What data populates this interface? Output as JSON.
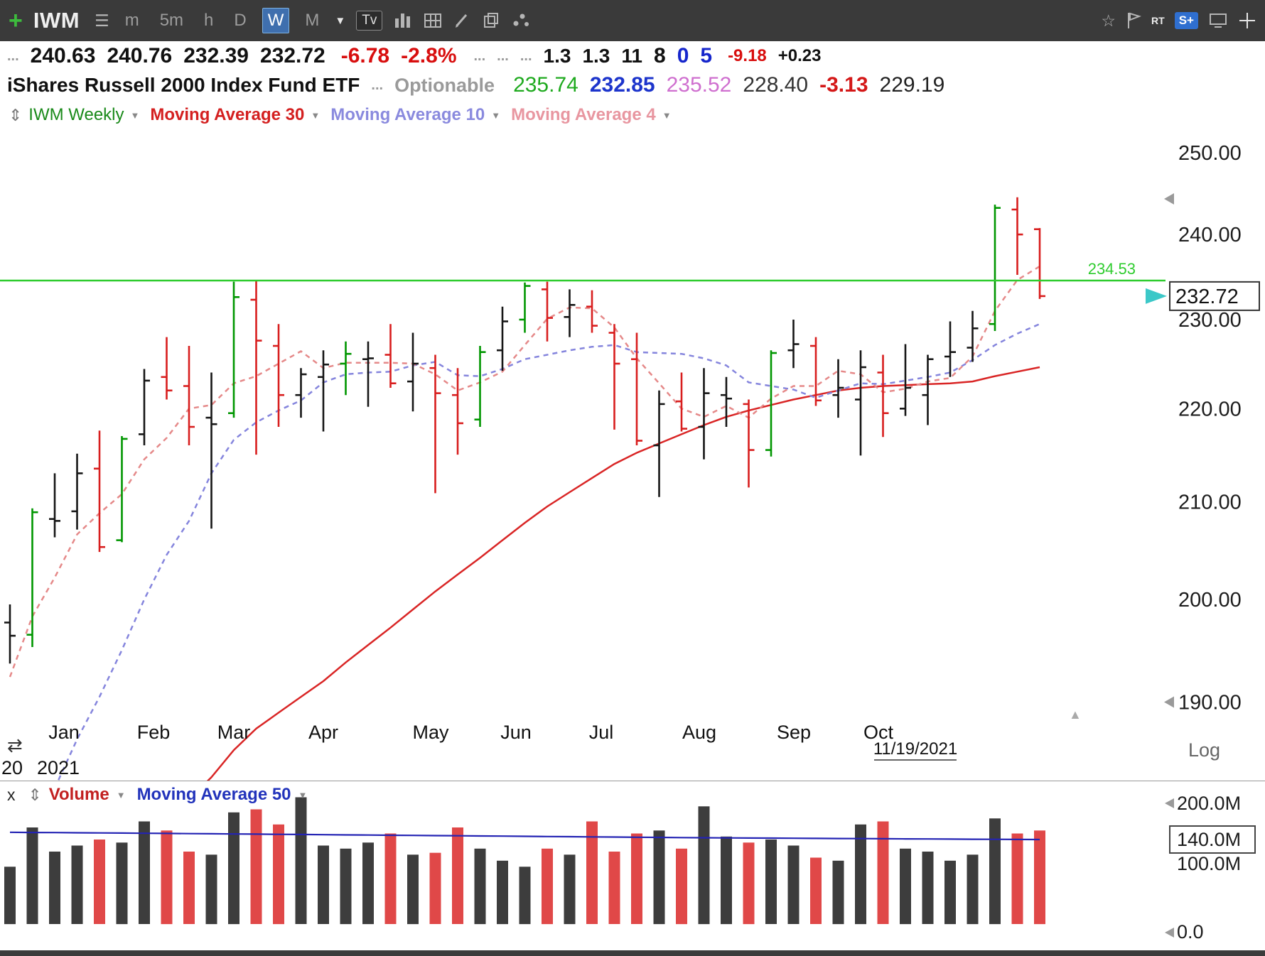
{
  "toolbar": {
    "ticker": "IWM",
    "timeframes": {
      "m": "m",
      "m5": "5m",
      "h": "h",
      "d": "D",
      "w": "W",
      "mo": "M"
    },
    "active_timeframe": "W",
    "tv_badge": "Tv",
    "rt_label": "RT",
    "s_badge": "S+"
  },
  "icons": {
    "plus": "+",
    "menu": "☰",
    "caret_down": "▼",
    "updown": "⇕",
    "reload": "⇄",
    "left_arrow": "◀",
    "up_arrow": "▲",
    "star": "☆"
  },
  "quote1": {
    "prefix_dots": "...",
    "open": "240.63",
    "high": "240.76",
    "low": "232.39",
    "last": "232.72",
    "change": "-6.78",
    "change_pct": "-2.8%",
    "dots1": "...",
    "dots2": "...",
    "dots3": "...",
    "v1": "1.3",
    "v2": "1.3",
    "v3": "11",
    "v4": "8",
    "v5": "0",
    "v6": "5",
    "v7": "-9.18",
    "v8": "+0.23"
  },
  "quote2": {
    "name": "iShares Russell 2000 Index Fund ETF",
    "dots": "...",
    "optionable": "Optionable",
    "val_green": "235.74",
    "val_blue": "232.85",
    "val_magenta": "235.52",
    "val_gray": "228.40",
    "val_red": "-3.13",
    "val_black": "229.19"
  },
  "price_legend": {
    "symbol": "IWM Weekly",
    "ma30": "Moving Average 30",
    "ma10": "Moving Average 10",
    "ma4": "Moving Average 4"
  },
  "volume_legend": {
    "close": "x",
    "volume": "Volume",
    "ma50": "Moving Average 50"
  },
  "colors": {
    "green_line": "#2ecc2e",
    "bar_green": "#009600",
    "bar_red": "#d81e1e",
    "bar_black": "#161616",
    "ma30": "#d92525",
    "ma10": "#8585dd",
    "ma4": "#e58989",
    "vol_red": "#e04848",
    "vol_dark": "#3d3d3d",
    "vol_ma": "#2424b4",
    "cyan_marker": "#3cc8c8",
    "axis_text": "#1c1c1c"
  },
  "chart_data": [
    {
      "type": "ohlc-bar",
      "title": "IWM Weekly",
      "scale": "log",
      "log_label": "Log",
      "y_ticks": [
        {
          "value": 250,
          "label": "250.00"
        },
        {
          "value": 240,
          "label": "240.00"
        },
        {
          "value": 230,
          "label": "230.00"
        },
        {
          "value": 220,
          "label": "220.00"
        },
        {
          "value": 210,
          "label": "210.00"
        },
        {
          "value": 200,
          "label": "200.00"
        },
        {
          "value": 190,
          "label": "190.00",
          "marker": true
        }
      ],
      "axis_arrow_values": [
        244.3
      ],
      "months": [
        {
          "label": "Jan",
          "i": 2.4
        },
        {
          "label": "Feb",
          "i": 6.4
        },
        {
          "label": "Mar",
          "i": 10.0
        },
        {
          "label": "Apr",
          "i": 14.0
        },
        {
          "label": "May",
          "i": 18.8
        },
        {
          "label": "Jun",
          "i": 22.6
        },
        {
          "label": "Jul",
          "i": 26.4
        },
        {
          "label": "Aug",
          "i": 30.8
        },
        {
          "label": "Sep",
          "i": 35.0
        },
        {
          "label": "Oct",
          "i": 38.8
        }
      ],
      "year_label": "2021",
      "prev_year_label": "20",
      "last_date": "11/19/2021",
      "hline": {
        "value": 234.53,
        "label": "234.53"
      },
      "last_price": {
        "value": 232.72,
        "label": "232.72"
      },
      "bars": [
        [
          197.7,
          199.5,
          193.7,
          196.4,
          "k"
        ],
        [
          196.5,
          209.3,
          195.3,
          208.9,
          "g"
        ],
        [
          208.2,
          213,
          206.3,
          208,
          "k"
        ],
        [
          209,
          215.1,
          207.1,
          213,
          "k"
        ],
        [
          213.5,
          217.6,
          204.8,
          205.3,
          "r"
        ],
        [
          206,
          217,
          205.8,
          216.7,
          "g"
        ],
        [
          217.2,
          224.4,
          216,
          223.1,
          "k"
        ],
        [
          223.5,
          228,
          221,
          222,
          "r"
        ],
        [
          222.5,
          227,
          216,
          218,
          "r"
        ],
        [
          219,
          224,
          207.2,
          218.3,
          "k"
        ],
        [
          219.5,
          234.4,
          219,
          232.6,
          "g"
        ],
        [
          232.3,
          234.53,
          215,
          227.6,
          "r"
        ],
        [
          227,
          229.5,
          218,
          221.5,
          "r"
        ],
        [
          221.5,
          224.5,
          219,
          223.8,
          "k"
        ],
        [
          223.5,
          226.5,
          217.5,
          224.9,
          "k"
        ],
        [
          225,
          227.5,
          221.5,
          226.1,
          "g"
        ],
        [
          225.5,
          227.5,
          220.2,
          225.6,
          "k"
        ],
        [
          226,
          229.5,
          222.3,
          222.8,
          "r"
        ],
        [
          223,
          228.5,
          219.7,
          225,
          "k"
        ],
        [
          224.5,
          226,
          210.9,
          221.7,
          "r"
        ],
        [
          221.5,
          224.5,
          215,
          218.4,
          "r"
        ],
        [
          218.8,
          227,
          218,
          226.3,
          "g"
        ],
        [
          226.5,
          231.5,
          224.2,
          229.8,
          "k"
        ],
        [
          230,
          234.3,
          228.5,
          233.9,
          "g"
        ],
        [
          233.5,
          234.4,
          227.5,
          230.2,
          "r"
        ],
        [
          230.3,
          233.5,
          228,
          231.7,
          "k"
        ],
        [
          231.5,
          233.4,
          228.5,
          229.3,
          "r"
        ],
        [
          228.5,
          229.5,
          217.7,
          225,
          "r"
        ],
        [
          225.5,
          228.5,
          216,
          216.5,
          "r"
        ],
        [
          216,
          222,
          210.5,
          220.5,
          "k"
        ],
        [
          220.8,
          224,
          217.5,
          217.8,
          "r"
        ],
        [
          218,
          224.5,
          214.5,
          221.7,
          "k"
        ],
        [
          221.5,
          223.5,
          218,
          221.1,
          "k"
        ],
        [
          220.5,
          221,
          211.5,
          215.5,
          "r"
        ],
        [
          215.5,
          226.5,
          214.8,
          226.2,
          "g"
        ],
        [
          226.5,
          230,
          224.5,
          227.2,
          "k"
        ],
        [
          227,
          228,
          220.3,
          220.9,
          "r"
        ],
        [
          221.5,
          225.5,
          219,
          222.3,
          "k"
        ],
        [
          221,
          226.5,
          214.9,
          224.6,
          "k"
        ],
        [
          224,
          226,
          216.9,
          219.5,
          "r"
        ],
        [
          220,
          227.2,
          219.2,
          222.3,
          "k"
        ],
        [
          221.5,
          226,
          218.2,
          225.5,
          "k"
        ],
        [
          225.8,
          229.8,
          223.5,
          226.3,
          "k"
        ],
        [
          226.8,
          231,
          225.2,
          229,
          "k"
        ],
        [
          229.5,
          243.6,
          228.7,
          243.2,
          "g"
        ],
        [
          243,
          244.5,
          235.2,
          240,
          "r"
        ],
        [
          240.63,
          240.76,
          232.39,
          232.72,
          "r"
        ]
      ],
      "ma4": [
        192.4,
        198.3,
        202.2,
        206.6,
        208.8,
        210.8,
        214.5,
        216.8,
        220,
        220.4,
        222.8,
        223.6,
        225,
        226.4,
        224.5,
        225.1,
        225.1,
        225.1,
        225,
        223.8,
        222,
        222.9,
        224.1,
        227.1,
        230.1,
        231.4,
        231.3,
        229.1,
        225.6,
        222.8,
        220,
        219.1,
        220.3,
        219,
        221.1,
        222.5,
        222.5,
        224.2,
        223.8,
        221.8,
        222.2,
        223,
        223.4,
        225.8,
        231,
        234.6,
        236.2
      ],
      "ma10": [
        173,
        178,
        182,
        186.5,
        190.5,
        195,
        200,
        204.5,
        208,
        213,
        216.6,
        218.5,
        219.8,
        220.9,
        222.9,
        223.8,
        224,
        224.1,
        224.8,
        225.2,
        223.7,
        223.6,
        224.4,
        225.5,
        226,
        226.5,
        226.9,
        227.1,
        226.3,
        226.2,
        226.1,
        225.6,
        224.8,
        222.9,
        222.5,
        222.1,
        221.2,
        222,
        222.8,
        222.7,
        223.1,
        223.5,
        224,
        225.4,
        227.1,
        228.4,
        229.5
      ],
      "ma30": [
        null,
        null,
        null,
        null,
        null,
        null,
        null,
        null,
        181,
        183,
        185.5,
        187.5,
        189,
        190.5,
        192,
        193.8,
        195.5,
        197.2,
        199,
        200.8,
        202.5,
        204.2,
        206,
        207.8,
        209.5,
        211,
        212.5,
        214,
        215.2,
        216.2,
        217.2,
        218.2,
        219.1,
        219.8,
        220.4,
        221,
        221.5,
        222,
        222.3,
        222.5,
        222.6,
        222.7,
        222.8,
        223,
        223.6,
        224.1,
        224.6
      ]
    },
    {
      "type": "bar",
      "title": "Volume",
      "values": [
        95,
        160,
        120,
        130,
        140,
        135,
        170,
        155,
        120,
        115,
        185,
        190,
        165,
        210,
        130,
        125,
        135,
        150,
        115,
        118,
        160,
        125,
        105,
        95,
        125,
        115,
        170,
        120,
        150,
        155,
        125,
        195,
        145,
        135,
        140,
        130,
        110,
        105,
        165,
        170,
        125,
        120,
        105,
        115,
        175,
        150,
        155
      ],
      "unit": "M",
      "ma50": [
        152,
        151.7,
        151.5,
        151.2,
        151,
        150.7,
        150.4,
        150.1,
        149.8,
        149.5,
        149.2,
        148.9,
        148.6,
        148.3,
        148,
        147.7,
        147.4,
        147.1,
        146.8,
        146.5,
        146.2,
        145.9,
        145.6,
        145.3,
        145,
        144.7,
        144.4,
        144.1,
        143.8,
        143.5,
        143.2,
        142.9,
        142.7,
        142.5,
        142.3,
        142.1,
        141.9,
        141.7,
        141.5,
        141.3,
        141.1,
        140.9,
        140.7,
        140.5,
        140.3,
        140.1,
        140
      ],
      "ticks": [
        {
          "value": 200,
          "label": "200.0M",
          "marker": true
        },
        {
          "value": 140,
          "label": "140.0M",
          "boxed": true
        },
        {
          "value": 100,
          "label": "100.0M"
        },
        {
          "value": 0,
          "label": "0.0",
          "marker": true
        }
      ]
    }
  ]
}
